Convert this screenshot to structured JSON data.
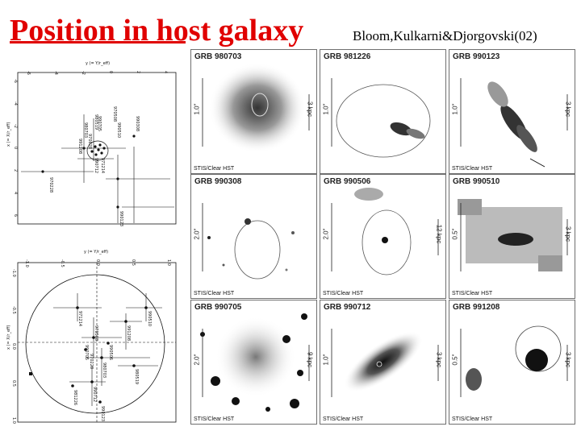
{
  "slide": {
    "title": "Position in host galaxy",
    "citation": "Bloom,Kulkarni&Djorgovski(02)"
  },
  "panels": [
    {
      "grb": "GRB 980703",
      "instrument": "STIS/Clear HST",
      "length_label": "1.0\"",
      "scale_label": "3 kpc"
    },
    {
      "grb": "GRB 981226",
      "instrument": "",
      "length_label": "1.0\"",
      "scale_label": ""
    },
    {
      "grb": "GRB 990123",
      "instrument": "STIS/Clear HST",
      "length_label": "1.0\"",
      "scale_label": "3 kpc"
    },
    {
      "grb": "GRB 990308",
      "instrument": "STIS/Clear HST",
      "length_label": "2.0\"",
      "scale_label": ""
    },
    {
      "grb": "GRB 990506",
      "instrument": "STIS/Clear HST",
      "length_label": "2.0\"",
      "scale_label": "12 kpc"
    },
    {
      "grb": "GRB 990510",
      "instrument": "STIS/Clear HST",
      "length_label": "0.5\"",
      "scale_label": "3 kpc"
    },
    {
      "grb": "GRB 990705",
      "instrument": "STIS/Clear HST",
      "length_label": "2.0\"",
      "scale_label": "9 kpc"
    },
    {
      "grb": "GRB 990712",
      "instrument": "STIS/Clear HST",
      "length_label": "1.0\"",
      "scale_label": "3 kpc"
    },
    {
      "grb": "GRB 991208",
      "instrument": "STIS/Clear HST",
      "length_label": "0.5\"",
      "scale_label": "3 kpc"
    }
  ],
  "plot_top": {
    "x_label": "y (= Y/r_eff)",
    "y_label": "x (= X/r_eff)",
    "x_ticks": [
      "-6",
      "-4",
      "-2",
      "0",
      "2",
      "4"
    ],
    "y_ticks": [
      "-6",
      "-4",
      "-2",
      "0",
      "2",
      "4",
      "6"
    ],
    "grb_labels": [
      "980703",
      "990705",
      "970828",
      "991208",
      "990712",
      "971214",
      "990510",
      "970508",
      "980519",
      "970228",
      "990308",
      "990123"
    ]
  },
  "plot_bottom": {
    "x_label": "y (= Y/r_eff)",
    "y_label": "x (= X/r_eff)",
    "x_ticks": [
      "-1.0",
      "-0.5",
      "0.0",
      "0.5",
      "1.0"
    ],
    "y_ticks": [
      "-1.0",
      "-0.5",
      "0.0",
      "0.5",
      "1.0"
    ],
    "grb_labels": [
      "971214",
      "970508",
      "990705",
      "970228",
      "991208",
      "990510",
      "980519",
      "980703",
      "990712",
      "990123",
      "981226",
      "990506"
    ]
  },
  "colors": {
    "title": "#e00000",
    "panel_border": "#6f6f6f",
    "plot_line": "#111111"
  }
}
